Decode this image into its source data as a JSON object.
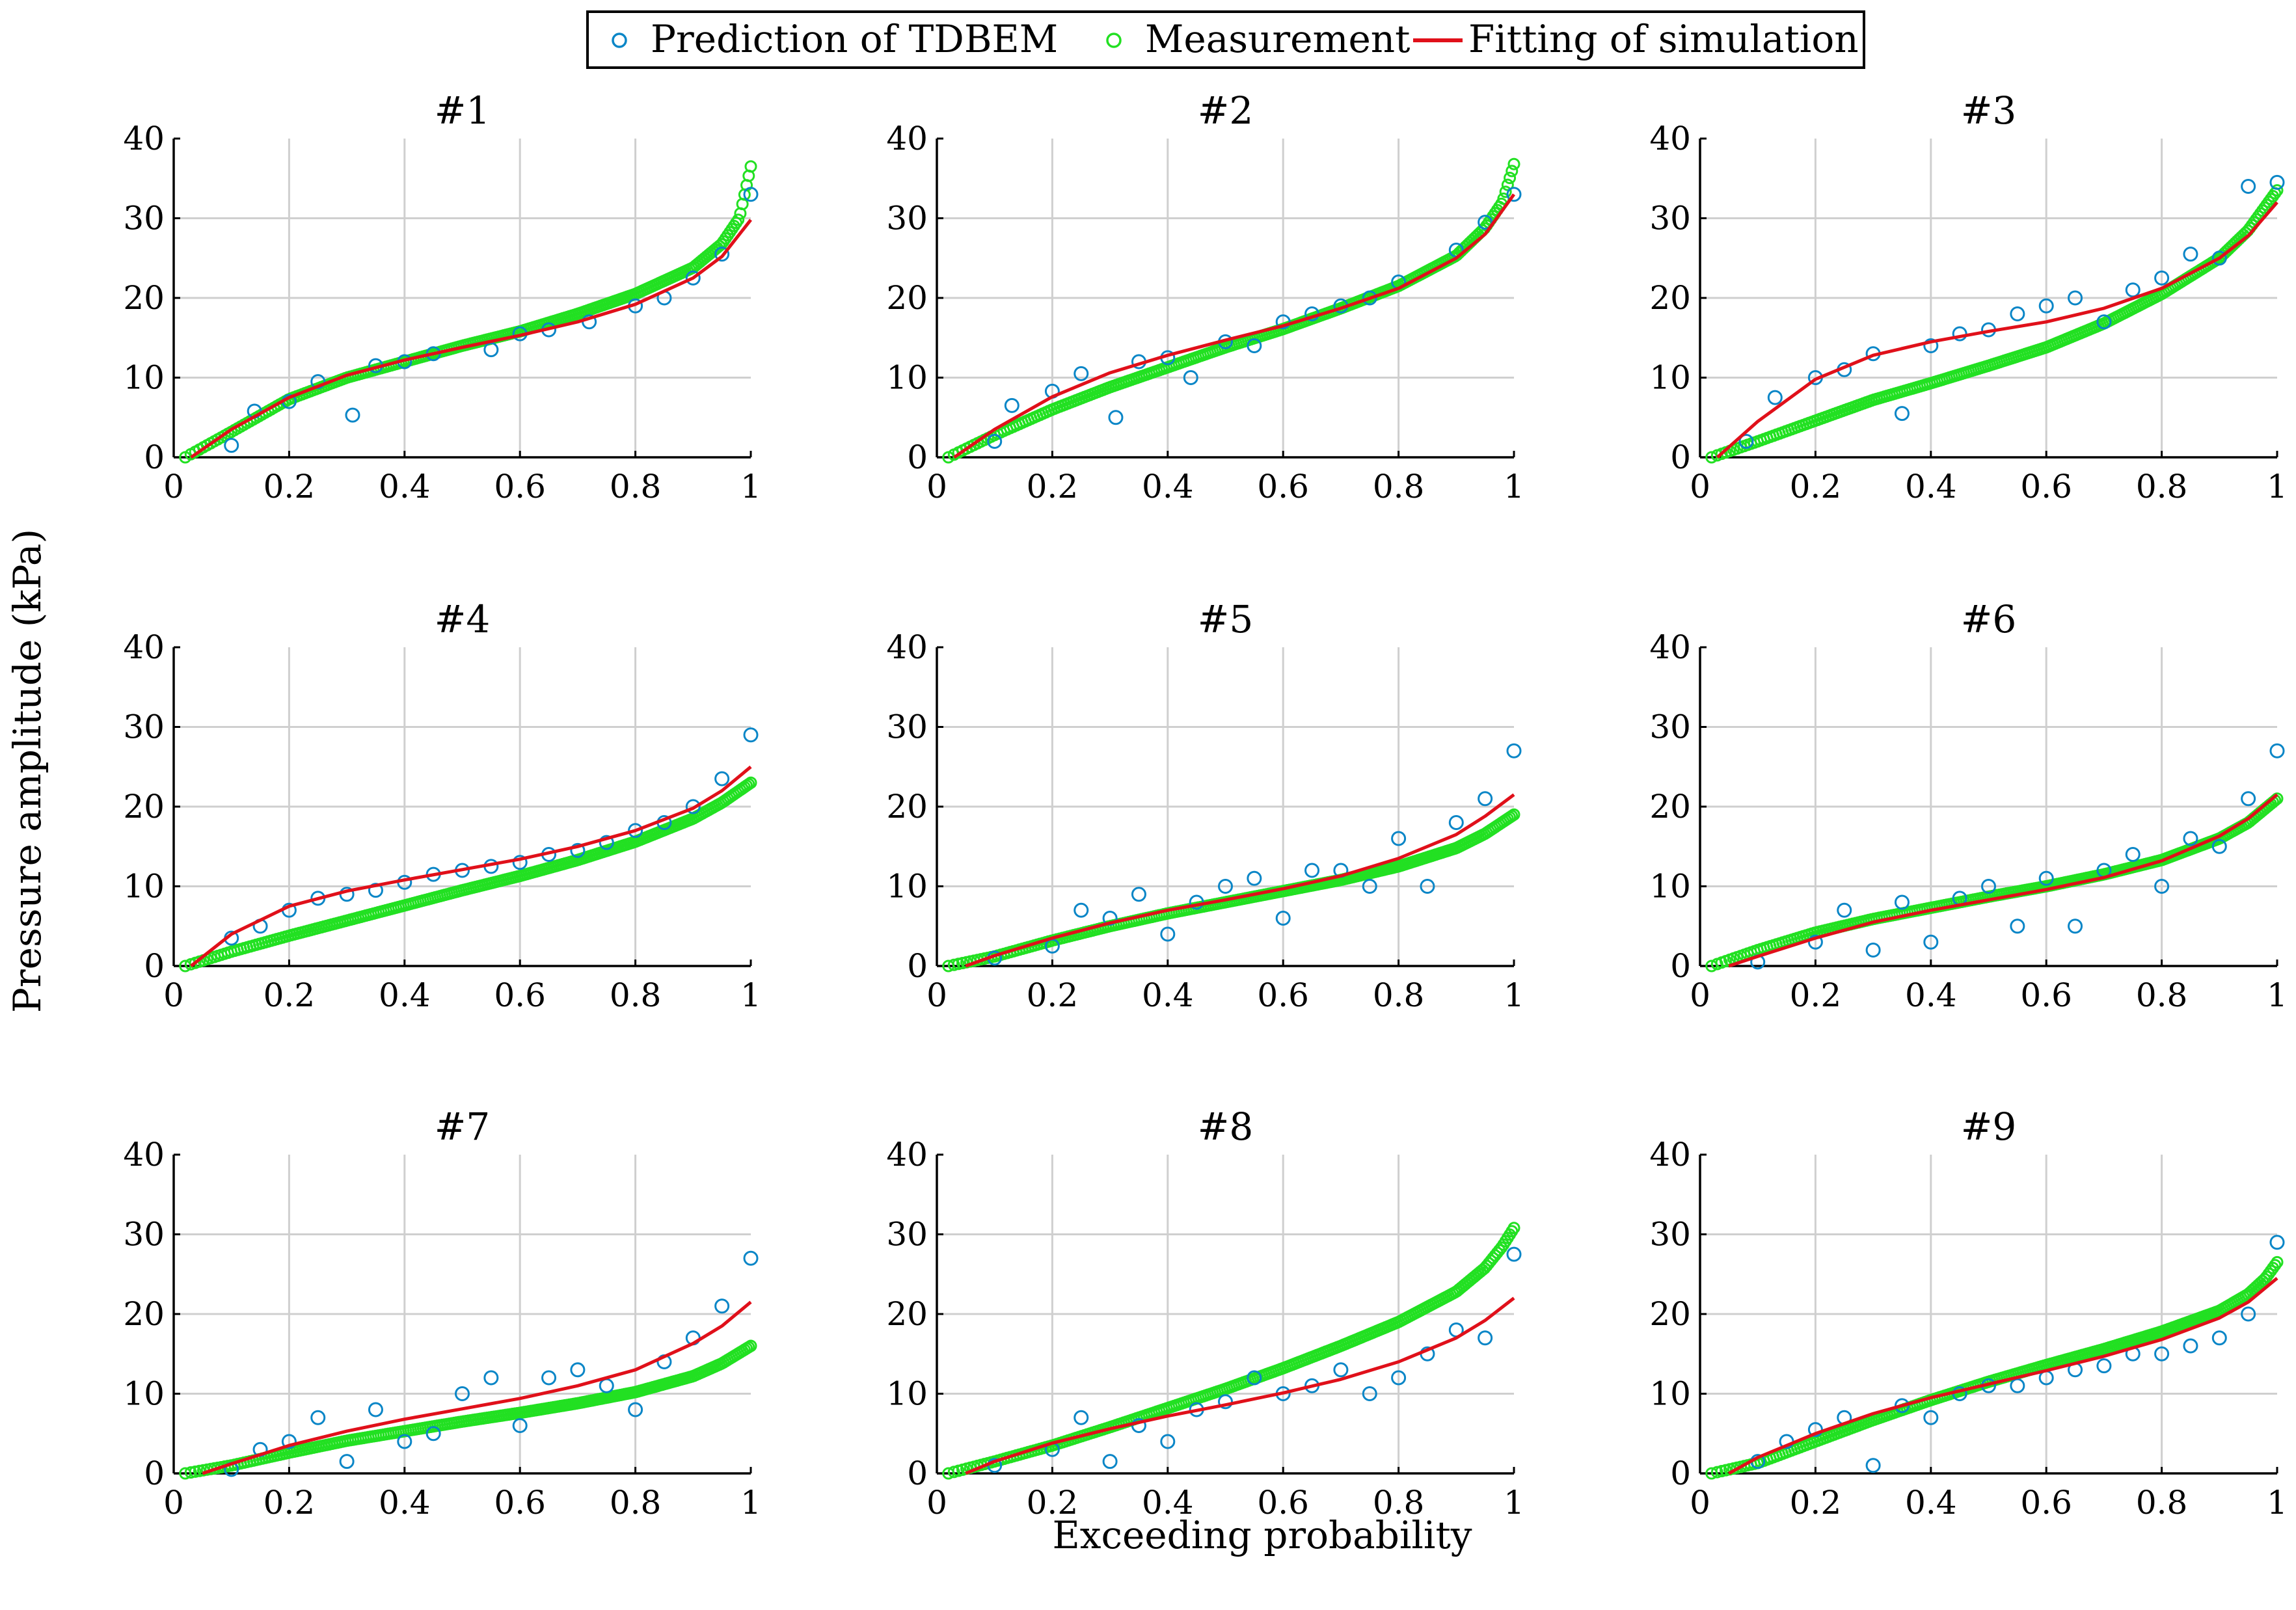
{
  "figure": {
    "ylabel": "Pressure amplitude (kPa)",
    "xlabel": "Exceeding probability"
  },
  "legend": {
    "entries": [
      {
        "label": "Prediction of TDBEM",
        "marker": "open-circle",
        "color": "#0a86c7"
      },
      {
        "label": "Measurement",
        "marker": "open-circle",
        "color": "#22e022"
      },
      {
        "label": "Fitting of simulation",
        "marker": "line",
        "color": "#e0101a"
      }
    ]
  },
  "colors": {
    "tdbem": "#0a86c7",
    "measurement": "#22e022",
    "fit": "#e0101a",
    "grid": "#cfcfcf"
  },
  "axes": {
    "xticks": [
      0,
      0.2,
      0.4,
      0.6,
      0.8,
      1
    ],
    "xtick_labels": [
      "0",
      "0.2",
      "0.4",
      "0.6",
      "0.8",
      "1"
    ],
    "yticks": [
      0,
      10,
      20,
      30,
      40
    ],
    "ytick_labels": [
      "0",
      "10",
      "20",
      "30",
      "40"
    ],
    "xlim": [
      0,
      1
    ],
    "ylim": [
      0,
      40
    ]
  },
  "chart_data": [
    {
      "type": "scatter",
      "title": "#1",
      "xlim": [
        0,
        1
      ],
      "ylim": [
        0,
        40
      ],
      "fit": {
        "x": [
          0.03,
          0.1,
          0.2,
          0.3,
          0.4,
          0.5,
          0.6,
          0.7,
          0.8,
          0.9,
          0.95,
          1.0
        ],
        "y": [
          0,
          3.5,
          7.5,
          10.3,
          12.2,
          13.8,
          15.3,
          17,
          19.2,
          22.5,
          25.2,
          29.8
        ]
      },
      "measurement": {
        "x": [
          0.02,
          0.1,
          0.2,
          0.3,
          0.4,
          0.5,
          0.6,
          0.7,
          0.8,
          0.9,
          0.95,
          0.98,
          1.0
        ],
        "y": [
          0,
          3.2,
          7.3,
          10,
          12,
          14,
          15.8,
          18,
          20.5,
          23.8,
          26.8,
          30,
          36.5
        ]
      },
      "tdbem": {
        "x": [
          0.1,
          0.14,
          0.2,
          0.25,
          0.31,
          0.35,
          0.4,
          0.45,
          0.55,
          0.6,
          0.65,
          0.72,
          0.8,
          0.85,
          0.9,
          0.95,
          1.0
        ],
        "y": [
          1.5,
          5.8,
          7,
          9.5,
          5.3,
          11.5,
          12,
          13,
          13.5,
          15.5,
          16,
          17,
          19,
          20,
          22.5,
          25.5,
          33
        ]
      }
    },
    {
      "type": "scatter",
      "title": "#2",
      "xlim": [
        0,
        1
      ],
      "ylim": [
        0,
        40
      ],
      "fit": {
        "x": [
          0.03,
          0.1,
          0.2,
          0.3,
          0.4,
          0.5,
          0.6,
          0.7,
          0.8,
          0.9,
          0.95,
          1.0
        ],
        "y": [
          0,
          3.5,
          7.6,
          10.6,
          12.8,
          14.7,
          16.5,
          18.7,
          21.2,
          25,
          28,
          33
        ]
      },
      "measurement": {
        "x": [
          0.02,
          0.1,
          0.2,
          0.3,
          0.4,
          0.5,
          0.6,
          0.7,
          0.8,
          0.9,
          0.95,
          0.98,
          1.0
        ],
        "y": [
          0,
          2.8,
          6,
          8.8,
          11.3,
          13.8,
          16.1,
          18.7,
          21.5,
          25.3,
          28.8,
          32,
          36.8
        ]
      },
      "tdbem": {
        "x": [
          0.1,
          0.13,
          0.2,
          0.25,
          0.31,
          0.35,
          0.4,
          0.44,
          0.5,
          0.55,
          0.6,
          0.65,
          0.7,
          0.75,
          0.8,
          0.9,
          0.95,
          1.0
        ],
        "y": [
          2,
          6.5,
          8.3,
          10.5,
          5,
          12,
          12.5,
          10,
          14.5,
          14,
          17,
          18,
          19,
          20,
          22,
          26,
          29.5,
          33
        ]
      }
    },
    {
      "type": "scatter",
      "title": "#3",
      "xlim": [
        0,
        1
      ],
      "ylim": [
        0,
        40
      ],
      "fit": {
        "x": [
          0.03,
          0.1,
          0.2,
          0.3,
          0.4,
          0.5,
          0.6,
          0.7,
          0.8,
          0.9,
          0.95,
          1.0
        ],
        "y": [
          0,
          4.5,
          9.8,
          12.8,
          14.5,
          15.8,
          17,
          18.7,
          21.2,
          25,
          27.8,
          32
        ]
      },
      "measurement": {
        "x": [
          0.02,
          0.1,
          0.2,
          0.3,
          0.4,
          0.5,
          0.6,
          0.7,
          0.8,
          0.9,
          0.95,
          1.0
        ],
        "y": [
          0,
          2,
          4.6,
          7.2,
          9.3,
          11.5,
          13.8,
          16.8,
          20.5,
          25,
          28.5,
          33.5
        ]
      },
      "tdbem": {
        "x": [
          0.08,
          0.13,
          0.2,
          0.25,
          0.3,
          0.35,
          0.4,
          0.45,
          0.5,
          0.55,
          0.6,
          0.65,
          0.7,
          0.75,
          0.8,
          0.85,
          0.9,
          0.95,
          1.0
        ],
        "y": [
          2,
          7.5,
          10,
          11,
          13,
          5.5,
          14,
          15.5,
          16,
          18,
          19,
          20,
          17,
          21,
          22.5,
          25.5,
          25,
          34,
          34.5
        ]
      }
    },
    {
      "type": "scatter",
      "title": "#4",
      "xlim": [
        0,
        1
      ],
      "ylim": [
        0,
        40
      ],
      "fit": {
        "x": [
          0.03,
          0.1,
          0.2,
          0.3,
          0.4,
          0.5,
          0.6,
          0.7,
          0.8,
          0.9,
          0.95,
          1.0
        ],
        "y": [
          0,
          4,
          7.5,
          9.4,
          10.8,
          12.1,
          13.4,
          15,
          17,
          19.8,
          22,
          25
        ]
      },
      "measurement": {
        "x": [
          0.02,
          0.1,
          0.2,
          0.3,
          0.4,
          0.5,
          0.6,
          0.7,
          0.8,
          0.9,
          0.95,
          1.0
        ],
        "y": [
          0,
          1.8,
          3.8,
          5.7,
          7.6,
          9.5,
          11.3,
          13.3,
          15.6,
          18.5,
          20.5,
          23
        ]
      },
      "tdbem": {
        "x": [
          0.1,
          0.15,
          0.2,
          0.25,
          0.3,
          0.35,
          0.4,
          0.45,
          0.5,
          0.55,
          0.6,
          0.65,
          0.7,
          0.75,
          0.8,
          0.85,
          0.9,
          0.95,
          1.0
        ],
        "y": [
          3.5,
          5,
          7,
          8.5,
          9,
          9.5,
          10.5,
          11.5,
          12,
          12.5,
          13,
          14,
          14.5,
          15.5,
          17,
          18,
          20,
          23.5,
          29
        ]
      }
    },
    {
      "type": "scatter",
      "title": "#5",
      "xlim": [
        0,
        1
      ],
      "ylim": [
        0,
        40
      ],
      "fit": {
        "x": [
          0.05,
          0.1,
          0.2,
          0.3,
          0.4,
          0.5,
          0.6,
          0.7,
          0.8,
          0.9,
          0.95,
          1.0
        ],
        "y": [
          0,
          1.3,
          3.5,
          5.4,
          7,
          8.3,
          9.7,
          11.3,
          13.5,
          16.5,
          18.8,
          21.5
        ]
      },
      "measurement": {
        "x": [
          0.02,
          0.1,
          0.2,
          0.3,
          0.4,
          0.5,
          0.6,
          0.7,
          0.8,
          0.9,
          0.95,
          1.0
        ],
        "y": [
          0,
          1.2,
          3.2,
          5,
          6.6,
          8,
          9.4,
          10.8,
          12.5,
          14.8,
          16.6,
          19
        ]
      },
      "tdbem": {
        "x": [
          0.1,
          0.2,
          0.25,
          0.3,
          0.35,
          0.4,
          0.45,
          0.5,
          0.55,
          0.6,
          0.65,
          0.7,
          0.75,
          0.8,
          0.85,
          0.9,
          0.95,
          1.0
        ],
        "y": [
          1,
          2.5,
          7,
          6,
          9,
          4,
          8,
          10,
          11,
          6,
          12,
          12,
          10,
          16,
          10,
          18,
          21,
          27
        ]
      }
    },
    {
      "type": "scatter",
      "title": "#6",
      "xlim": [
        0,
        1
      ],
      "ylim": [
        0,
        40
      ],
      "fit": {
        "x": [
          0.05,
          0.1,
          0.2,
          0.3,
          0.4,
          0.5,
          0.6,
          0.7,
          0.8,
          0.9,
          0.95,
          1.0
        ],
        "y": [
          0,
          1.2,
          3.5,
          5.5,
          7,
          8.3,
          9.6,
          11.1,
          13.2,
          16.3,
          18.5,
          21.5
        ]
      },
      "measurement": {
        "x": [
          0.02,
          0.1,
          0.2,
          0.3,
          0.4,
          0.5,
          0.6,
          0.7,
          0.8,
          0.9,
          0.95,
          1.0
        ],
        "y": [
          0,
          2,
          4.2,
          5.9,
          7.3,
          8.7,
          10,
          11.5,
          13.3,
          16,
          18,
          21
        ]
      },
      "tdbem": {
        "x": [
          0.1,
          0.2,
          0.25,
          0.3,
          0.35,
          0.4,
          0.45,
          0.5,
          0.55,
          0.6,
          0.65,
          0.7,
          0.75,
          0.8,
          0.85,
          0.9,
          0.95,
          1.0
        ],
        "y": [
          0.5,
          3,
          7,
          2,
          8,
          3,
          8.5,
          10,
          5,
          11,
          5,
          12,
          14,
          10,
          16,
          15,
          21,
          27
        ]
      }
    },
    {
      "type": "scatter",
      "title": "#7",
      "xlim": [
        0,
        1
      ],
      "ylim": [
        0,
        40
      ],
      "fit": {
        "x": [
          0.05,
          0.1,
          0.2,
          0.3,
          0.4,
          0.5,
          0.6,
          0.7,
          0.8,
          0.9,
          0.95,
          1.0
        ],
        "y": [
          0,
          1.2,
          3.5,
          5.3,
          6.8,
          8.1,
          9.4,
          11,
          13,
          16.3,
          18.5,
          21.5
        ]
      },
      "measurement": {
        "x": [
          0.02,
          0.1,
          0.2,
          0.3,
          0.4,
          0.5,
          0.6,
          0.7,
          0.8,
          0.9,
          0.95,
          1.0
        ],
        "y": [
          0,
          1,
          2.6,
          4.1,
          5.3,
          6.5,
          7.6,
          8.8,
          10.2,
          12.2,
          13.8,
          16
        ]
      },
      "tdbem": {
        "x": [
          0.1,
          0.15,
          0.2,
          0.25,
          0.3,
          0.35,
          0.4,
          0.45,
          0.5,
          0.55,
          0.6,
          0.65,
          0.7,
          0.75,
          0.8,
          0.85,
          0.9,
          0.95,
          1.0
        ],
        "y": [
          0.5,
          3,
          4,
          7,
          1.5,
          8,
          4,
          5,
          10,
          12,
          6,
          12,
          13,
          11,
          8,
          14,
          17,
          21,
          27
        ]
      }
    },
    {
      "type": "scatter",
      "title": "#8",
      "xlim": [
        0,
        1
      ],
      "ylim": [
        0,
        40
      ],
      "fit": {
        "x": [
          0.05,
          0.1,
          0.2,
          0.3,
          0.4,
          0.5,
          0.6,
          0.7,
          0.8,
          0.9,
          0.95,
          1.0
        ],
        "y": [
          0,
          1.5,
          3.8,
          5.6,
          7.2,
          8.6,
          10.1,
          11.8,
          14,
          17,
          19.2,
          22
        ]
      },
      "measurement": {
        "x": [
          0.02,
          0.1,
          0.2,
          0.3,
          0.4,
          0.5,
          0.6,
          0.7,
          0.8,
          0.9,
          0.95,
          0.98,
          1.0
        ],
        "y": [
          0,
          1.5,
          3.5,
          5.8,
          8.2,
          10.6,
          13.2,
          16,
          19,
          22.8,
          25.8,
          28.5,
          30.8
        ]
      },
      "tdbem": {
        "x": [
          0.1,
          0.2,
          0.25,
          0.3,
          0.35,
          0.4,
          0.45,
          0.5,
          0.55,
          0.6,
          0.65,
          0.7,
          0.75,
          0.8,
          0.85,
          0.9,
          0.95,
          1.0
        ],
        "y": [
          1,
          3,
          7,
          1.5,
          6,
          4,
          8,
          9,
          12,
          10,
          11,
          13,
          10,
          12,
          15,
          18,
          17,
          27.5
        ]
      }
    },
    {
      "type": "scatter",
      "title": "#9",
      "xlim": [
        0,
        1
      ],
      "ylim": [
        0,
        40
      ],
      "fit": {
        "x": [
          0.05,
          0.1,
          0.2,
          0.3,
          0.4,
          0.5,
          0.6,
          0.7,
          0.8,
          0.9,
          0.95,
          1.0
        ],
        "y": [
          0,
          2,
          5,
          7.5,
          9.5,
          11.2,
          12.9,
          14.7,
          16.8,
          19.5,
          21.5,
          24.5
        ]
      },
      "measurement": {
        "x": [
          0.02,
          0.1,
          0.2,
          0.3,
          0.4,
          0.5,
          0.6,
          0.7,
          0.8,
          0.9,
          0.95,
          0.98,
          1.0
        ],
        "y": [
          0,
          1.3,
          4,
          6.7,
          9.2,
          11.5,
          13.6,
          15.6,
          17.8,
          20.4,
          22.5,
          24.5,
          26.5
        ]
      },
      "tdbem": {
        "x": [
          0.1,
          0.15,
          0.2,
          0.25,
          0.3,
          0.35,
          0.4,
          0.45,
          0.5,
          0.55,
          0.6,
          0.65,
          0.7,
          0.75,
          0.8,
          0.85,
          0.9,
          0.95,
          1.0
        ],
        "y": [
          1.5,
          4,
          5.5,
          7,
          1,
          8.5,
          7,
          10,
          11,
          11,
          12,
          13,
          13.5,
          15,
          15,
          16,
          17,
          20,
          29
        ]
      }
    }
  ]
}
